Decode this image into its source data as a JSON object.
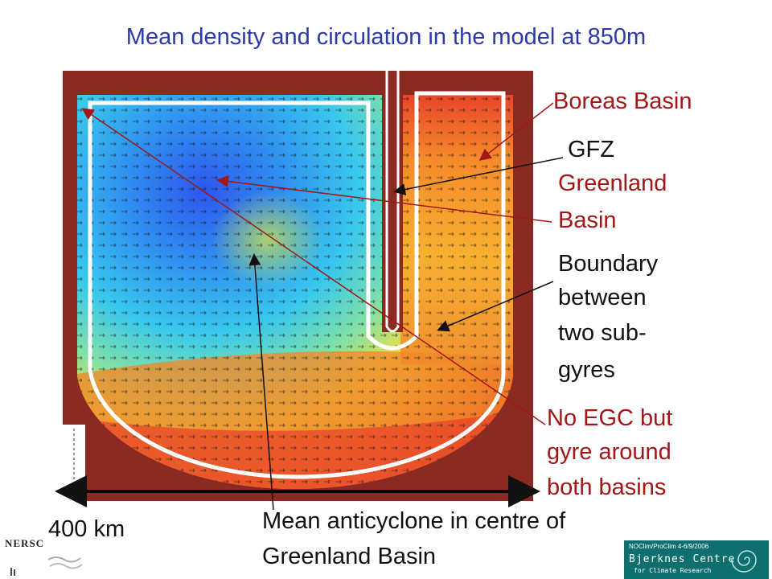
{
  "title": "Mean density and circulation in the model at 850m",
  "labels": {
    "boreas": "Boreas Basin",
    "gfz": "GFZ",
    "greenland_1": "Greenland",
    "greenland_2": "Basin",
    "boundary_1": "Boundary",
    "boundary_2": "between",
    "boundary_3": "two sub-",
    "boundary_4": "gyres",
    "egc_1": "No EGC but",
    "egc_2": "gyre around",
    "egc_3": "both basins",
    "anticyclone_1": "Mean anticyclone in centre of",
    "anticyclone_2": "Greenland Basin",
    "scale": "400 km"
  },
  "logos": {
    "left": "NERSC",
    "right_date": "NOClim/ProClim 4-6/9/2006",
    "right_name": "Bjerknes Centre",
    "right_sub": "for Climate Research"
  },
  "colors": {
    "title": "#2b3aa8",
    "red_label": "#a01818",
    "land": "#8a2a22",
    "bjerknes": "#0f6f6e"
  }
}
